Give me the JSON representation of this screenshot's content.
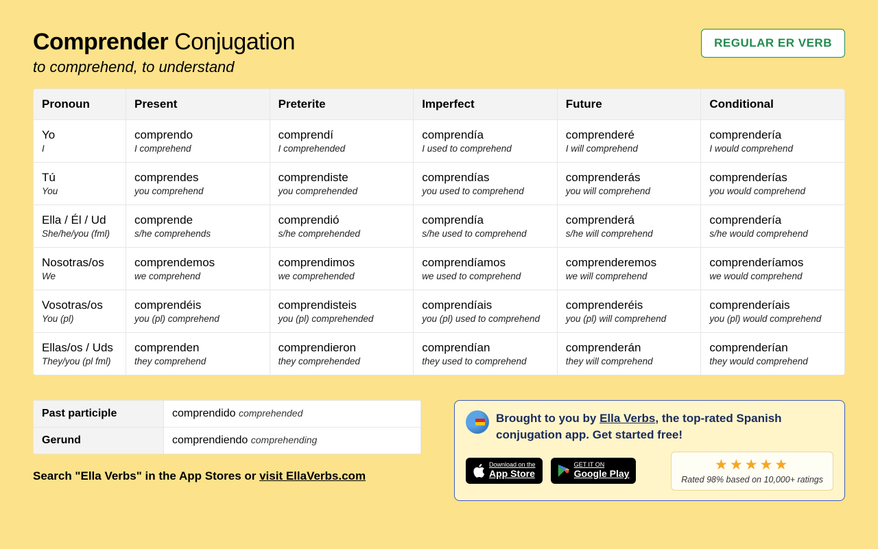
{
  "header": {
    "verb": "Comprender",
    "suffix": "Conjugation",
    "definition": "to comprehend, to understand",
    "badge": "REGULAR ER VERB"
  },
  "table": {
    "columns": [
      "Pronoun",
      "Present",
      "Preterite",
      "Imperfect",
      "Future",
      "Conditional"
    ],
    "pronouns": [
      {
        "main": "Yo",
        "sub": "I"
      },
      {
        "main": "Tú",
        "sub": "You"
      },
      {
        "main": "Ella / Él / Ud",
        "sub": "She/he/you (fml)"
      },
      {
        "main": "Nosotras/os",
        "sub": "We"
      },
      {
        "main": "Vosotras/os",
        "sub": "You (pl)"
      },
      {
        "main": "Ellas/os / Uds",
        "sub": "They/you (pl fml)"
      }
    ],
    "cells": [
      [
        {
          "m": "comprendo",
          "s": "I comprehend"
        },
        {
          "m": "comprendí",
          "s": "I comprehended"
        },
        {
          "m": "comprendía",
          "s": "I used to comprehend"
        },
        {
          "m": "comprenderé",
          "s": "I will comprehend"
        },
        {
          "m": "comprendería",
          "s": "I would comprehend"
        }
      ],
      [
        {
          "m": "comprendes",
          "s": "you comprehend"
        },
        {
          "m": "comprendiste",
          "s": "you comprehended"
        },
        {
          "m": "comprendías",
          "s": "you used to comprehend"
        },
        {
          "m": "comprenderás",
          "s": "you will comprehend"
        },
        {
          "m": "comprenderías",
          "s": "you would comprehend"
        }
      ],
      [
        {
          "m": "comprende",
          "s": "s/he comprehends"
        },
        {
          "m": "comprendió",
          "s": "s/he comprehended"
        },
        {
          "m": "comprendía",
          "s": "s/he used to comprehend"
        },
        {
          "m": "comprenderá",
          "s": "s/he will comprehend"
        },
        {
          "m": "comprendería",
          "s": "s/he would comprehend"
        }
      ],
      [
        {
          "m": "comprendemos",
          "s": "we comprehend"
        },
        {
          "m": "comprendimos",
          "s": "we comprehended"
        },
        {
          "m": "comprendíamos",
          "s": "we used to comprehend"
        },
        {
          "m": "comprenderemos",
          "s": "we will comprehend"
        },
        {
          "m": "comprenderíamos",
          "s": "we would comprehend"
        }
      ],
      [
        {
          "m": "comprendéis",
          "s": "you (pl) comprehend"
        },
        {
          "m": "comprendisteis",
          "s": "you (pl) comprehended"
        },
        {
          "m": "comprendíais",
          "s": "you (pl) used to comprehend"
        },
        {
          "m": "comprenderéis",
          "s": "you (pl) will comprehend"
        },
        {
          "m": "comprenderíais",
          "s": "you (pl) would comprehend"
        }
      ],
      [
        {
          "m": "comprenden",
          "s": "they comprehend"
        },
        {
          "m": "comprendieron",
          "s": "they comprehended"
        },
        {
          "m": "comprendían",
          "s": "they used to comprehend"
        },
        {
          "m": "comprenderán",
          "s": "they will comprehend"
        },
        {
          "m": "comprenderían",
          "s": "they would comprehend"
        }
      ]
    ]
  },
  "forms": {
    "past_participle_label": "Past participle",
    "past_participle_value": "comprendido",
    "past_participle_trans": "comprehended",
    "gerund_label": "Gerund",
    "gerund_value": "comprendiendo",
    "gerund_trans": "comprehending"
  },
  "search_note": {
    "prefix": "Search \"Ella Verbs\" in the App Stores or ",
    "link": "visit EllaVerbs.com"
  },
  "promo": {
    "text_before": "Brought to you by ",
    "link": "Ella Verbs",
    "text_after": ", the top-rated Spanish conjugation app. Get started free!",
    "app_store_small": "Download on the",
    "app_store_big": "App Store",
    "google_play_small": "GET IT ON",
    "google_play_big": "Google Play",
    "stars": "★★★★★",
    "rating_text": "Rated 98% based on 10,000+ ratings"
  },
  "colors": {
    "background": "#fce28a",
    "badge_border": "#228b4f",
    "promo_border": "#3b5cc4",
    "promo_bg": "#fff5c9",
    "star": "#f5a623"
  }
}
